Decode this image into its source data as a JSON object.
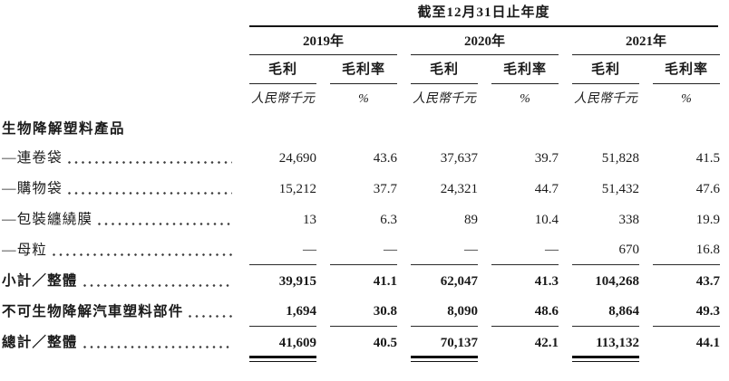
{
  "table": {
    "title": "截至12月31日止年度",
    "col_groups": [
      {
        "year": "2019年",
        "metric1": "毛利",
        "metric2": "毛利率",
        "unit1": "人民幣千元",
        "unit2": "%"
      },
      {
        "year": "2020年",
        "metric1": "毛利",
        "metric2": "毛利率",
        "unit1": "人民幣千元",
        "unit2": "%"
      },
      {
        "year": "2021年",
        "metric1": "毛利",
        "metric2": "毛利率",
        "unit1": "人民幣千元",
        "unit2": "%"
      }
    ],
    "section_header": "生物降解塑料產品",
    "rows": [
      {
        "label": "—連卷袋",
        "values": [
          "24,690",
          "43.6",
          "37,637",
          "39.7",
          "51,828",
          "41.5"
        ],
        "bold": false
      },
      {
        "label": "—購物袋",
        "values": [
          "15,212",
          "37.7",
          "24,321",
          "44.7",
          "51,432",
          "47.6"
        ],
        "bold": false
      },
      {
        "label": "—包裝纏繞膜",
        "values": [
          "13",
          "6.3",
          "89",
          "10.4",
          "338",
          "19.9"
        ],
        "bold": false
      },
      {
        "label": "—母粒",
        "values": [
          "—",
          "—",
          "—",
          "—",
          "670",
          "16.8"
        ],
        "bold": false,
        "rule_below": true
      },
      {
        "label": "小計／整體",
        "values": [
          "39,915",
          "41.1",
          "62,047",
          "41.3",
          "104,268",
          "43.7"
        ],
        "bold": true
      },
      {
        "label": "不可生物降解汽車塑料部件",
        "values": [
          "1,694",
          "30.8",
          "8,090",
          "48.6",
          "8,864",
          "49.3"
        ],
        "bold": true,
        "rule_below": true
      },
      {
        "label": "總計／整體",
        "values": [
          "41,609",
          "40.5",
          "70,137",
          "42.1",
          "113,132",
          "44.1"
        ],
        "bold": true,
        "grand_rule_below": true
      }
    ]
  }
}
